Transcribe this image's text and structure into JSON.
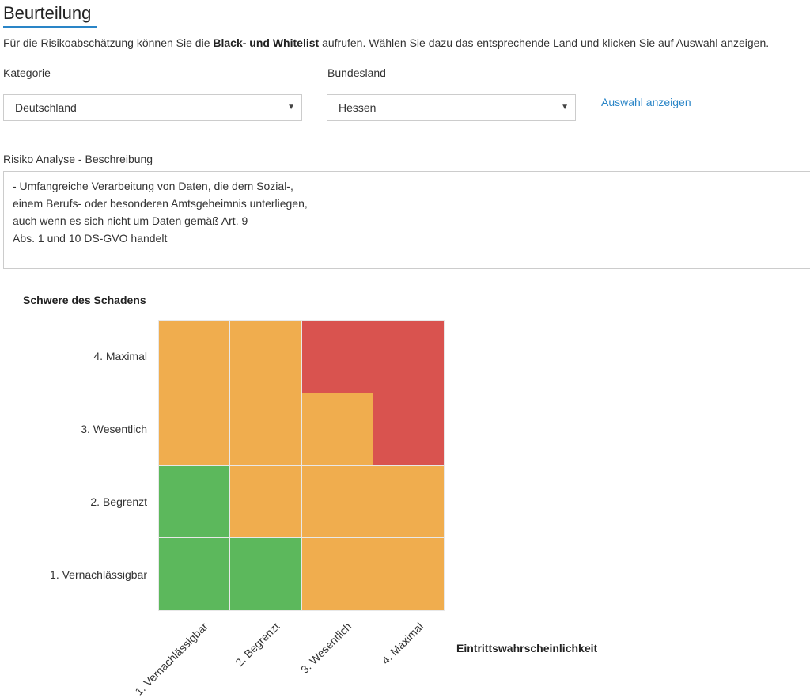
{
  "page": {
    "title": "Beurteilung",
    "intro_before": "Für die Risikoabschätzung können Sie die ",
    "intro_bold": "Black- und Whitelist",
    "intro_after": " aufrufen. Wählen Sie dazu das entsprechende Land und klicken Sie auf Auswahl anzeigen."
  },
  "filters": {
    "kategorie_label": "Kategorie",
    "kategorie_value": "Deutschland",
    "bundesland_label": "Bundesland",
    "bundesland_value": "Hessen",
    "show_link": "Auswahl anzeigen"
  },
  "analysis": {
    "label": "Risiko Analyse - Beschreibung",
    "text": "-  Umfangreiche Verarbeitung von Daten, die dem Sozial-,\neinem Berufs- oder besonderen Amtsgeheimnis unterliegen,\nauch wenn es sich nicht um Daten gemäß Art. 9\nAbs. 1 und 10 DS-GVO handelt"
  },
  "colors": {
    "accent": "#2a85c7",
    "green": "#5cb85c",
    "orange": "#f0ad4e",
    "red": "#d9534f"
  },
  "matrix": {
    "y_title": "Schwere des Schadens",
    "x_title": "Eintrittswahrscheinlichkeit",
    "y_levels": [
      "4. Maximal",
      "3. Wesentlich",
      "2. Begrenzt",
      "1. Vernachlässigbar"
    ],
    "x_levels": [
      "1. Vernachlässigbar",
      "2. Begrenzt",
      "3. Wesentlich",
      "4. Maximal"
    ],
    "cells": [
      [
        "orange",
        "orange",
        "red",
        "red"
      ],
      [
        "orange",
        "orange",
        "orange",
        "red"
      ],
      [
        "green",
        "orange",
        "orange",
        "orange"
      ],
      [
        "green",
        "green",
        "orange",
        "orange"
      ]
    ]
  }
}
